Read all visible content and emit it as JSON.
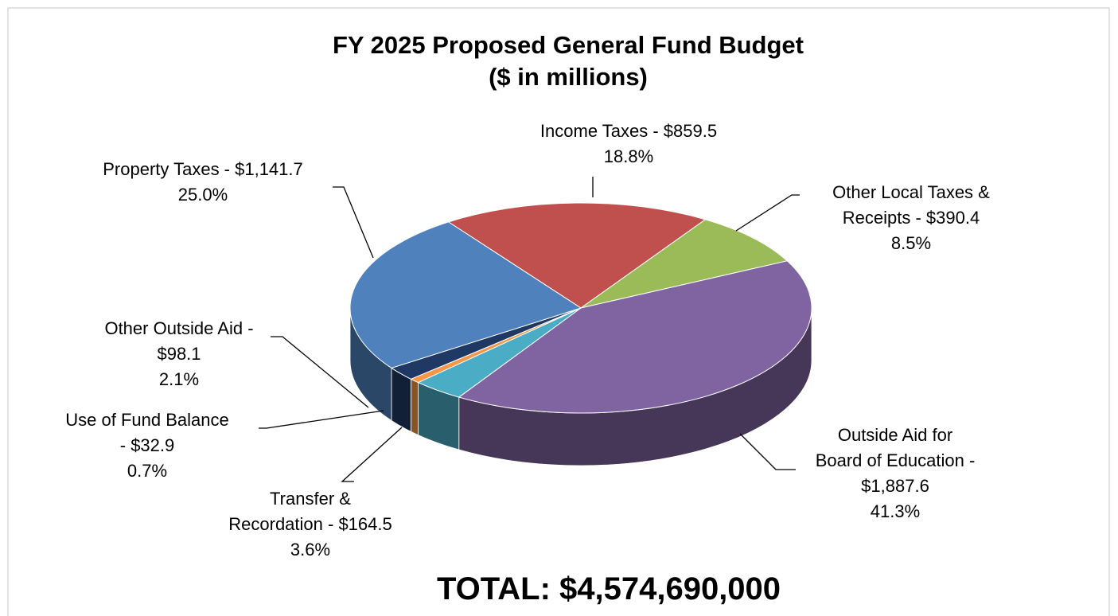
{
  "chart_data": {
    "type": "pie3d",
    "title": "FY 2025 Proposed General Fund Budget",
    "subtitle": "($ in millions)",
    "values": [
      859.5,
      390.4,
      1887.6,
      164.5,
      32.9,
      98.1,
      1141.7
    ],
    "value_labels": [
      [
        "Income Taxes - $859.5"
      ],
      [
        "Other Local Taxes &",
        "Receipts - $390.4"
      ],
      [
        "Outside Aid for",
        "Board of Education -",
        "$1,887.6"
      ],
      [
        "Transfer &",
        "Recordation - $164.5"
      ],
      [
        "Use of Fund Balance",
        "- $32.9"
      ],
      [
        "Other Outside Aid -",
        "$98.1"
      ],
      [
        "Property Taxes - $1,141.7"
      ]
    ],
    "percentages": [
      18.8,
      8.5,
      41.3,
      3.6,
      0.7,
      2.1,
      25.0
    ],
    "percentage_labels": [
      "18.8%",
      "8.5%",
      "41.3%",
      "3.6%",
      "0.7%",
      "2.1%",
      "25.0%"
    ],
    "colors": [
      "#c0504d",
      "#9bbb59",
      "#8064a2",
      "#4bacc6",
      "#f79646",
      "#1f3864",
      "#4f81bd"
    ],
    "total": "TOTAL: $4,574,690,000"
  }
}
